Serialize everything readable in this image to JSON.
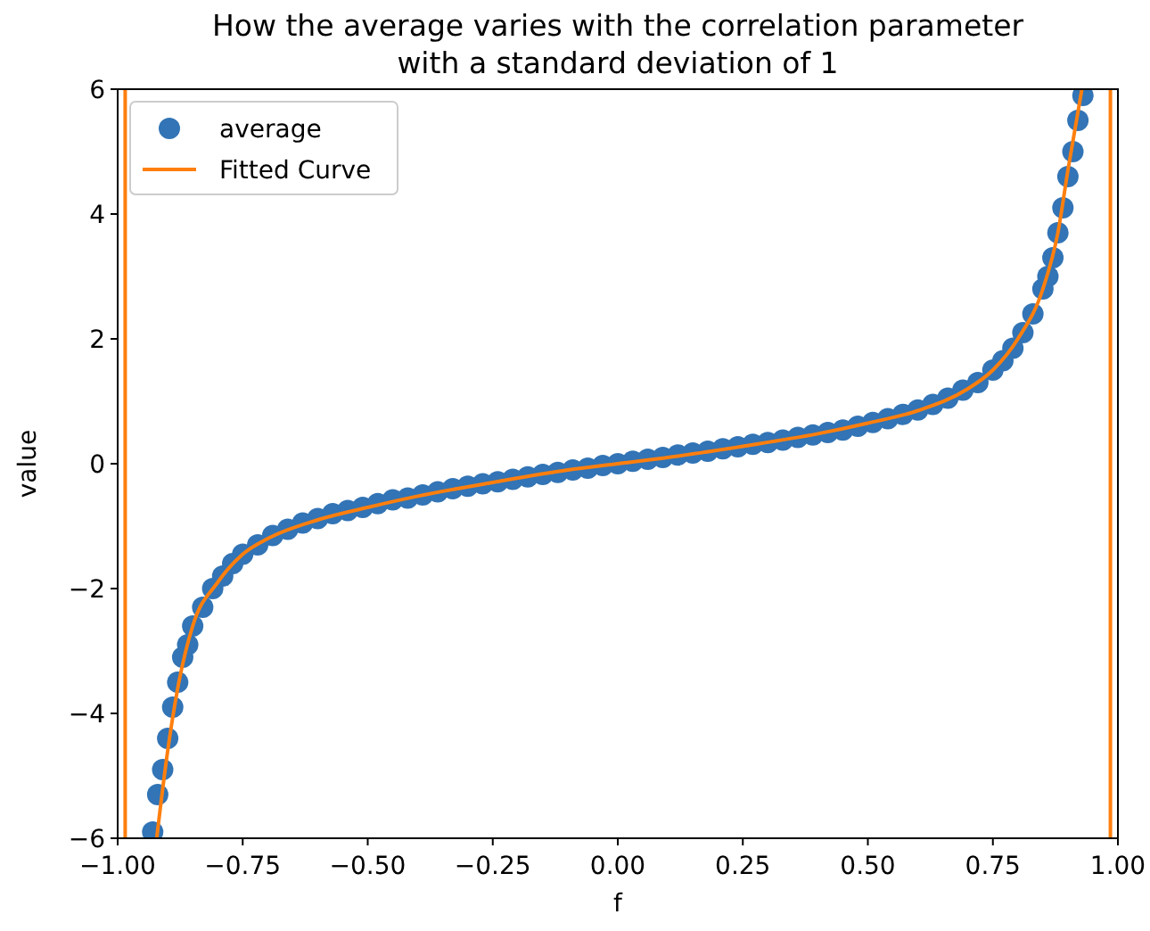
{
  "chart_data": {
    "type": "scatter",
    "title": "How the average varies with the correlation parameter\nwith a standard deviation of 1",
    "xlabel": "f",
    "ylabel": "value",
    "xlim": [
      -1,
      1
    ],
    "xticks": [
      {
        "value": -1,
        "label": "−1.00"
      },
      {
        "value": -0.75,
        "label": "−0.75"
      },
      {
        "value": -0.5,
        "label": "−0.50"
      },
      {
        "value": -0.25,
        "label": "−0.25"
      },
      {
        "value": 0,
        "label": "0.00"
      },
      {
        "value": 0.25,
        "label": "0.25"
      },
      {
        "value": 0.5,
        "label": "0.50"
      },
      {
        "value": 0.75,
        "label": "0.75"
      },
      {
        "value": 1,
        "label": "1.00"
      }
    ],
    "ylim": [
      -6,
      6
    ],
    "yticks": [
      {
        "value": -6,
        "label": "−6"
      },
      {
        "value": -4,
        "label": "−4"
      },
      {
        "value": -2,
        "label": "−2"
      },
      {
        "value": 0,
        "label": "0"
      },
      {
        "value": 2,
        "label": "2"
      },
      {
        "value": 4,
        "label": "4"
      },
      {
        "value": 6,
        "label": "6"
      }
    ],
    "grid": false,
    "legend": "top left",
    "series": [
      {
        "name": "average",
        "marker": "circle",
        "color": "#3274b5",
        "x": [
          -0.93,
          -0.92,
          -0.91,
          -0.9,
          -0.89,
          -0.88,
          -0.87,
          -0.86,
          -0.85,
          -0.83,
          -0.81,
          -0.79,
          -0.77,
          -0.75,
          -0.72,
          -0.69,
          -0.66,
          -0.63,
          -0.6,
          -0.57,
          -0.54,
          -0.51,
          -0.48,
          -0.45,
          -0.42,
          -0.39,
          -0.36,
          -0.33,
          -0.3,
          -0.27,
          -0.24,
          -0.21,
          -0.18,
          -0.15,
          -0.12,
          -0.09,
          -0.06,
          -0.03,
          0,
          0.03,
          0.06,
          0.09,
          0.12,
          0.15,
          0.18,
          0.21,
          0.24,
          0.27,
          0.3,
          0.33,
          0.36,
          0.39,
          0.42,
          0.45,
          0.48,
          0.51,
          0.54,
          0.57,
          0.6,
          0.63,
          0.66,
          0.69,
          0.72,
          0.75,
          0.77,
          0.79,
          0.81,
          0.83,
          0.85,
          0.86,
          0.87,
          0.88,
          0.89,
          0.9,
          0.91,
          0.92,
          0.93
        ],
        "values": [
          -5.9,
          -5.3,
          -4.9,
          -4.4,
          -3.9,
          -3.5,
          -3.1,
          -2.9,
          -2.6,
          -2.3,
          -2.0,
          -1.8,
          -1.6,
          -1.45,
          -1.3,
          -1.15,
          -1.05,
          -0.95,
          -0.88,
          -0.8,
          -0.75,
          -0.7,
          -0.64,
          -0.58,
          -0.55,
          -0.5,
          -0.45,
          -0.4,
          -0.36,
          -0.32,
          -0.29,
          -0.25,
          -0.21,
          -0.17,
          -0.14,
          -0.1,
          -0.07,
          -0.03,
          0,
          0.04,
          0.07,
          0.1,
          0.14,
          0.17,
          0.2,
          0.24,
          0.27,
          0.31,
          0.34,
          0.38,
          0.42,
          0.46,
          0.5,
          0.54,
          0.6,
          0.66,
          0.72,
          0.79,
          0.86,
          0.95,
          1.05,
          1.18,
          1.3,
          1.5,
          1.65,
          1.85,
          2.1,
          2.4,
          2.8,
          3.0,
          3.3,
          3.7,
          4.1,
          4.6,
          5.0,
          5.5,
          5.9
        ]
      },
      {
        "name": "Fitted Curve",
        "type": "line",
        "color": "#ff7f0e",
        "x": [
          -0.922,
          -0.9,
          -0.88,
          -0.85,
          -0.8,
          -0.75,
          -0.7,
          -0.6,
          -0.5,
          -0.4,
          -0.25,
          -0.1,
          0,
          0.1,
          0.25,
          0.4,
          0.5,
          0.6,
          0.7,
          0.75,
          0.8,
          0.85,
          0.88,
          0.9,
          0.928
        ],
        "values": [
          -6,
          -4.6,
          -3.6,
          -2.6,
          -1.9,
          -1.45,
          -1.2,
          -0.9,
          -0.7,
          -0.52,
          -0.3,
          -0.1,
          0,
          0.1,
          0.28,
          0.48,
          0.65,
          0.85,
          1.2,
          1.5,
          2.0,
          2.8,
          3.7,
          4.7,
          6
        ]
      }
    ],
    "ref_lines": [
      {
        "axis": "x",
        "value": -0.985,
        "color": "#ff7f0e"
      },
      {
        "axis": "x",
        "value": 0.985,
        "color": "#ff7f0e"
      }
    ]
  }
}
